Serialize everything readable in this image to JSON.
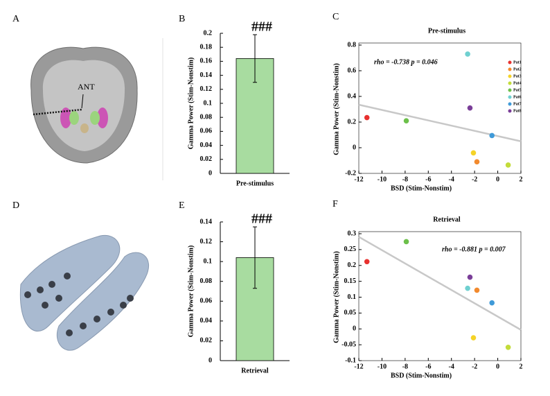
{
  "figure": {
    "panel_labels": [
      "A",
      "B",
      "C",
      "D",
      "E",
      "F"
    ],
    "ant_label": "ANT"
  },
  "chart_data": [
    {
      "type": "bar",
      "categories": [
        "Pre-stimulus"
      ],
      "values": [
        0.164
      ],
      "errors": [
        0.034
      ],
      "color": "#a8dca0",
      "ylabel": "Gamma Power (Stim-Nonstim)",
      "annotation": "###",
      "ylim": [
        0,
        0.2
      ],
      "yticks": [
        0,
        0.02,
        0.04,
        0.06,
        0.08,
        0.1,
        0.12,
        0.14,
        0.16,
        0.18,
        0.2
      ]
    },
    {
      "type": "scatter",
      "title": "Pre-stimulus",
      "xlabel": "BSD (Stim-Nonstim)",
      "ylabel": "Gamma Power (Stim-Nonstim)",
      "annotation": "rho = -0.738 p = 0.046",
      "legend": true,
      "legend_position": "upper right",
      "xlim": [
        -12,
        2
      ],
      "xticks": [
        -12,
        -10,
        -8,
        -6,
        -4,
        -2,
        0,
        2
      ],
      "ylim": [
        -0.2,
        0.8
      ],
      "yticks": [
        -0.2,
        0,
        0.2,
        0.4,
        0.6,
        0.8
      ],
      "trend": {
        "color": "#c8c8c8",
        "x": [
          -12,
          2
        ],
        "values": [
          0.335,
          0.05
        ]
      },
      "series": [
        {
          "name": "Pat1",
          "color": "#e8312f",
          "x": [
            -11.3
          ],
          "values": [
            0.235
          ]
        },
        {
          "name": "Pat2",
          "color": "#f28a2e",
          "x": [
            -1.8
          ],
          "values": [
            -0.11
          ]
        },
        {
          "name": "Pat3",
          "color": "#f5d327",
          "x": [
            -2.1
          ],
          "values": [
            -0.04
          ]
        },
        {
          "name": "Pat4",
          "color": "#c3dc3a",
          "x": [
            0.9
          ],
          "values": [
            -0.135
          ]
        },
        {
          "name": "Pat5",
          "color": "#6cc04a",
          "x": [
            -7.9
          ],
          "values": [
            0.21
          ]
        },
        {
          "name": "Pat6",
          "color": "#6fd0d0",
          "x": [
            -2.6
          ],
          "values": [
            0.73
          ]
        },
        {
          "name": "Pat7",
          "color": "#3f9ad8",
          "x": [
            -0.5
          ],
          "values": [
            0.095
          ]
        },
        {
          "name": "Pat8",
          "color": "#7a3e98",
          "x": [
            -2.4
          ],
          "values": [
            0.31
          ]
        }
      ]
    },
    {
      "type": "bar",
      "categories": [
        "Retrieval"
      ],
      "values": [
        0.104
      ],
      "errors": [
        0.031
      ],
      "color": "#a8dca0",
      "ylabel": "Gamma Power (Stim-Nonstim)",
      "annotation": "###",
      "ylim": [
        0,
        0.14
      ],
      "yticks": [
        0,
        0.02,
        0.04,
        0.06,
        0.08,
        0.1,
        0.12,
        0.14
      ]
    },
    {
      "type": "scatter",
      "title": "Retrieval",
      "xlabel": "BSD (Stim-Nonstim)",
      "ylabel": "Gamma Power (Stim-Nonstim)",
      "annotation": "rho = -0.881 p = 0.007",
      "legend": false,
      "xlim": [
        -12,
        2
      ],
      "xticks": [
        -12,
        -10,
        -8,
        -6,
        -4,
        -2,
        0,
        2
      ],
      "ylim": [
        -0.1,
        0.3
      ],
      "yticks": [
        -0.1,
        -0.05,
        0,
        0.05,
        0.1,
        0.15,
        0.2,
        0.25,
        0.3
      ],
      "trend": {
        "color": "#c8c8c8",
        "x": [
          -12,
          2
        ],
        "values": [
          0.29,
          -0.003
        ]
      },
      "series": [
        {
          "name": "Pat1",
          "color": "#e8312f",
          "x": [
            -11.3
          ],
          "values": [
            0.212
          ]
        },
        {
          "name": "Pat2",
          "color": "#f28a2e",
          "x": [
            -1.8
          ],
          "values": [
            0.122
          ]
        },
        {
          "name": "Pat3",
          "color": "#f5d327",
          "x": [
            -2.1
          ],
          "values": [
            -0.028
          ]
        },
        {
          "name": "Pat4",
          "color": "#c3dc3a",
          "x": [
            0.9
          ],
          "values": [
            -0.058
          ]
        },
        {
          "name": "Pat5",
          "color": "#6cc04a",
          "x": [
            -7.9
          ],
          "values": [
            0.275
          ]
        },
        {
          "name": "Pat6",
          "color": "#6fd0d0",
          "x": [
            -2.6
          ],
          "values": [
            0.128
          ]
        },
        {
          "name": "Pat7",
          "color": "#3f9ad8",
          "x": [
            -0.5
          ],
          "values": [
            0.082
          ]
        },
        {
          "name": "Pat8",
          "color": "#7a3e98",
          "x": [
            -2.4
          ],
          "values": [
            0.163
          ]
        }
      ]
    }
  ]
}
